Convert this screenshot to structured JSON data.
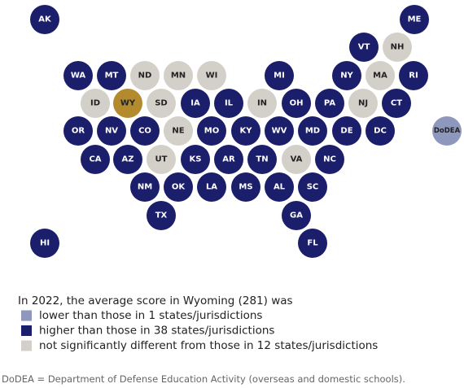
{
  "states": [
    {
      "label": "AK",
      "color": "#1b1f6b"
    },
    {
      "label": "ME",
      "color": "#1b1f6b"
    },
    {
      "label": "VT",
      "color": "#1b1f6b"
    },
    {
      "label": "NH",
      "color": "#d3d0c9"
    },
    {
      "label": "WA",
      "color": "#1b1f6b"
    },
    {
      "label": "MT",
      "color": "#1b1f6b"
    },
    {
      "label": "ND",
      "color": "#d3d0c9"
    },
    {
      "label": "MN",
      "color": "#d3d0c9"
    },
    {
      "label": "WI",
      "color": "#d3d0c9"
    },
    {
      "label": "MI",
      "color": "#1b1f6b"
    },
    {
      "label": "NY",
      "color": "#1b1f6b"
    },
    {
      "label": "MA",
      "color": "#d3d0c9"
    },
    {
      "label": "RI",
      "color": "#1b1f6b"
    },
    {
      "label": "ID",
      "color": "#d3d0c9"
    },
    {
      "label": "WY",
      "color": "#b38b2e"
    },
    {
      "label": "SD",
      "color": "#d3d0c9"
    },
    {
      "label": "IA",
      "color": "#1b1f6b"
    },
    {
      "label": "IL",
      "color": "#1b1f6b"
    },
    {
      "label": "IN",
      "color": "#d3d0c9"
    },
    {
      "label": "OH",
      "color": "#1b1f6b"
    },
    {
      "label": "PA",
      "color": "#1b1f6b"
    },
    {
      "label": "NJ",
      "color": "#d3d0c9"
    },
    {
      "label": "CT",
      "color": "#1b1f6b"
    },
    {
      "label": "OR",
      "color": "#1b1f6b"
    },
    {
      "label": "NV",
      "color": "#1b1f6b"
    },
    {
      "label": "CO",
      "color": "#1b1f6b"
    },
    {
      "label": "NE",
      "color": "#d3d0c9"
    },
    {
      "label": "MO",
      "color": "#1b1f6b"
    },
    {
      "label": "KY",
      "color": "#1b1f6b"
    },
    {
      "label": "WV",
      "color": "#1b1f6b"
    },
    {
      "label": "MD",
      "color": "#1b1f6b"
    },
    {
      "label": "DE",
      "color": "#1b1f6b"
    },
    {
      "label": "DC",
      "color": "#1b1f6b"
    },
    {
      "label": "DoDEA",
      "color": "#8e98bc"
    },
    {
      "label": "CA",
      "color": "#1b1f6b"
    },
    {
      "label": "AZ",
      "color": "#1b1f6b"
    },
    {
      "label": "UT",
      "color": "#d3d0c9"
    },
    {
      "label": "KS",
      "color": "#1b1f6b"
    },
    {
      "label": "AR",
      "color": "#1b1f6b"
    },
    {
      "label": "TN",
      "color": "#1b1f6b"
    },
    {
      "label": "VA",
      "color": "#d3d0c9"
    },
    {
      "label": "NC",
      "color": "#1b1f6b"
    },
    {
      "label": "NM",
      "color": "#1b1f6b"
    },
    {
      "label": "OK",
      "color": "#1b1f6b"
    },
    {
      "label": "LA",
      "color": "#1b1f6b"
    },
    {
      "label": "MS",
      "color": "#1b1f6b"
    },
    {
      "label": "AL",
      "color": "#1b1f6b"
    },
    {
      "label": "SC",
      "color": "#1b1f6b"
    },
    {
      "label": "TX",
      "color": "#1b1f6b"
    },
    {
      "label": "GA",
      "color": "#1b1f6b"
    },
    {
      "label": "HI",
      "color": "#1b1f6b"
    },
    {
      "label": "FL",
      "color": "#1b1f6b"
    }
  ],
  "legend": {
    "heading": "In 2022, the average score in Wyoming (281) was",
    "items": [
      {
        "label": "lower than those in 1 states/jurisdictions",
        "color": "#8e98bc"
      },
      {
        "label": "higher than those in 38 states/jurisdictions",
        "color": "#1b1f6b"
      },
      {
        "label": "not significantly different from those in 12 states/jurisdictions",
        "color": "#d3d0c9"
      }
    ]
  },
  "footnote": "DoDEA = Department of Defense Education Activity (overseas and domestic schools)."
}
